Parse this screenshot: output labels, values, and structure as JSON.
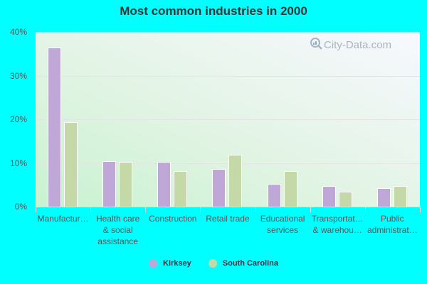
{
  "chart_data": {
    "type": "bar",
    "title": "Most common industries in 2000",
    "xlabel": "",
    "ylabel": "",
    "ylim": [
      0,
      40
    ],
    "yticks": [
      "0%",
      "10%",
      "20%",
      "30%",
      "40%"
    ],
    "grid": true,
    "legend_position": "bottom",
    "categories": [
      "Manufactur…",
      "Health care\n& social\nassistance",
      "Construction",
      "Retail trade",
      "Educational\nservices",
      "Transportat…\n& warehou…",
      "Public\nadministrat…"
    ],
    "series": [
      {
        "name": "Kirksey",
        "color": "#bfa8d8",
        "values": [
          36.4,
          10.4,
          10.2,
          8.6,
          5.2,
          4.7,
          4.3
        ]
      },
      {
        "name": "South Carolina",
        "color": "#c4d8a8",
        "values": [
          19.3,
          10.2,
          8.2,
          11.8,
          8.2,
          3.4,
          4.7
        ]
      }
    ]
  },
  "watermark": "City-Data.com"
}
